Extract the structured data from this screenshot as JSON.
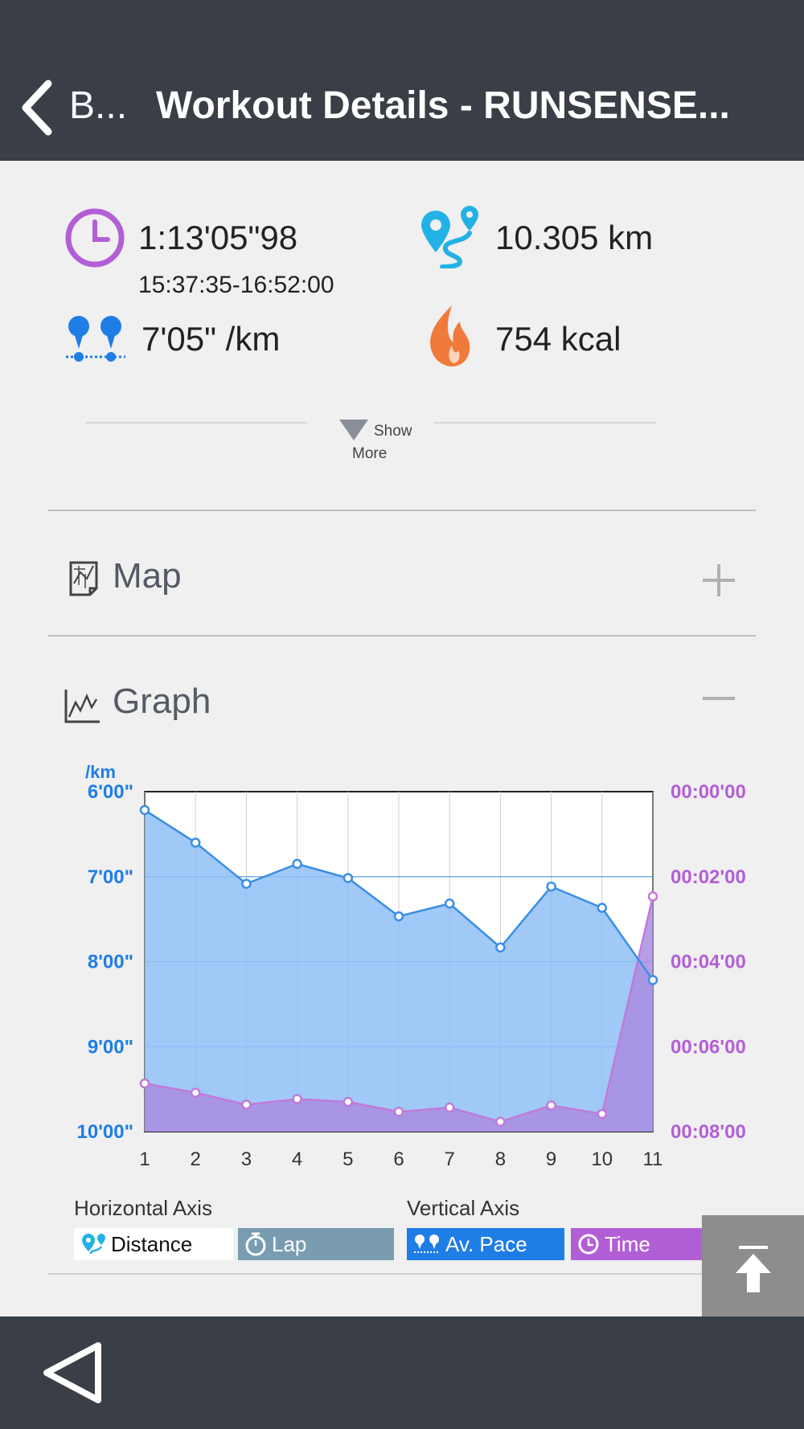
{
  "header": {
    "back_label": "B...",
    "title": "Workout Details - RUNSENSE..."
  },
  "stats": {
    "duration": "1:13'05\"98",
    "time_range": "15:37:35-16:52:00",
    "distance": "10.305 km",
    "pace": "7'05\" /km",
    "calories": "754 kcal"
  },
  "show_more": {
    "line1": "Show",
    "line2": "More"
  },
  "sections": {
    "map": {
      "title": "Map",
      "toggle": "+"
    },
    "graph": {
      "title": "Graph",
      "toggle": "−"
    }
  },
  "chart_data": {
    "type": "area",
    "x": [
      1,
      2,
      3,
      4,
      5,
      6,
      7,
      8,
      9,
      10,
      11
    ],
    "left_axis_unit": "/km",
    "left_ticks": [
      "6'00\"",
      "7'00\"",
      "8'00\"",
      "9'00\"",
      "10'00\""
    ],
    "right_ticks": [
      "00:00'00",
      "00:02'00",
      "00:04'00",
      "00:06'00",
      "00:08'00"
    ],
    "left_range_seconds": [
      360,
      600
    ],
    "right_range_seconds": [
      0,
      480
    ],
    "grid": true,
    "series": [
      {
        "name": "Av. Pace",
        "axis": "left",
        "color": "#3a8ee6",
        "values_seconds": [
          373,
          396,
          425,
          411,
          421,
          448,
          439,
          470,
          427,
          442,
          493
        ]
      },
      {
        "name": "Time",
        "axis": "right",
        "color": "#b25fd6",
        "values_seconds": [
          412,
          425,
          442,
          434,
          438,
          452,
          446,
          466,
          443,
          455,
          148
        ]
      }
    ]
  },
  "legend": {
    "horizontal_axis_label": "Horizontal Axis",
    "vertical_axis_label": "Vertical Axis",
    "distance": "Distance",
    "lap": "Lap",
    "av_pace": "Av. Pace",
    "time": "Time"
  },
  "colors": {
    "header_bg": "#3a3e46",
    "pace_blue": "#3a8ee6",
    "time_purple": "#b25fd6",
    "lap_bg": "#7a9cb0"
  }
}
